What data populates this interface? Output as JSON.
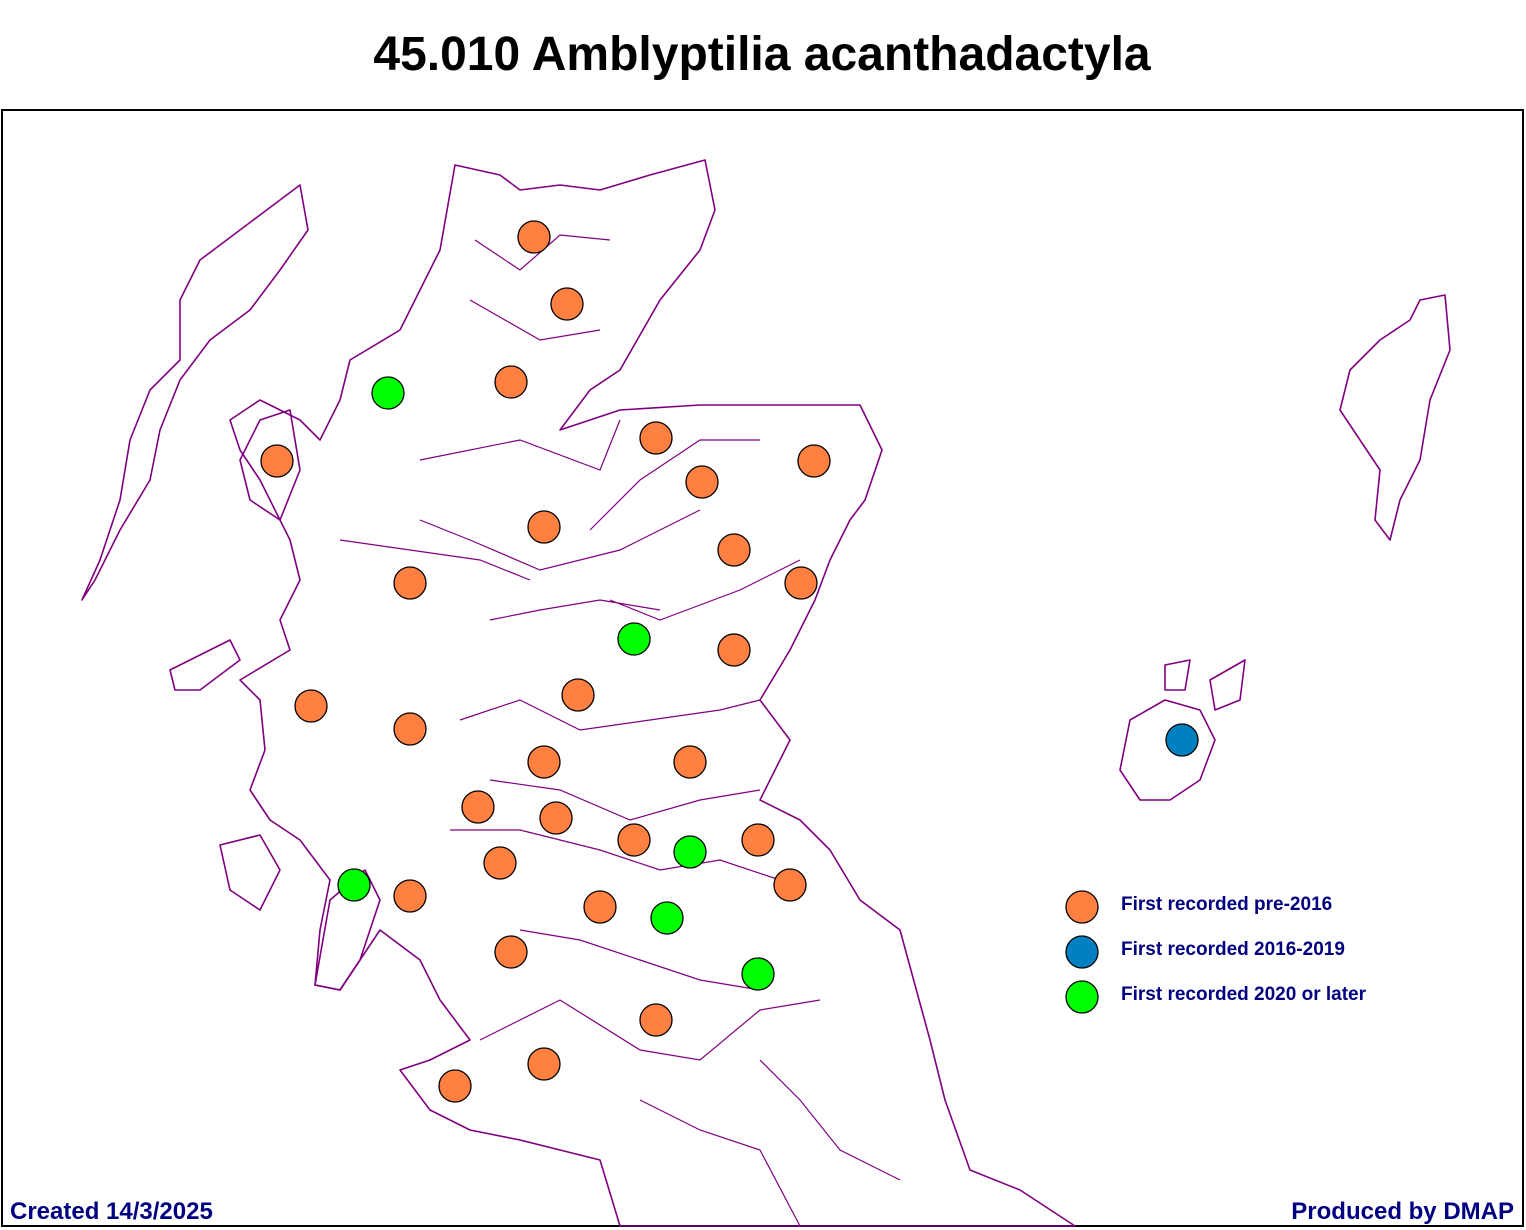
{
  "title": "45.010 Amblyptilia acanthadactyla",
  "legend": [
    {
      "label": "First recorded pre-2016",
      "color": "#ff8040"
    },
    {
      "label": "First recorded 2016-2019",
      "color": "#0080c0"
    },
    {
      "label": "First recorded 2020 or later",
      "color": "#00ff00"
    }
  ],
  "footer": {
    "left": "Created 14/3/2025",
    "right": "Produced by DMAP"
  }
}
